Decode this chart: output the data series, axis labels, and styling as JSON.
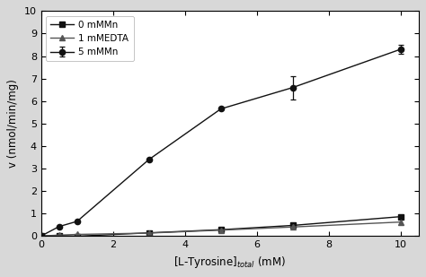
{
  "series": [
    {
      "label": "5 mMMn",
      "marker": "o",
      "color": "#111111",
      "x": [
        0,
        0.5,
        1.0,
        3.0,
        5.0,
        7.0,
        10.0
      ],
      "y": [
        0.0,
        0.42,
        0.65,
        3.4,
        5.65,
        6.6,
        8.3
      ],
      "yerr": [
        0,
        0,
        0,
        0,
        0,
        0.52,
        0.18
      ]
    },
    {
      "label": "0 mMMn",
      "marker": "s",
      "color": "#111111",
      "x": [
        0,
        0.5,
        1.0,
        3.0,
        5.0,
        7.0,
        10.0
      ],
      "y": [
        0.0,
        0.02,
        -0.01,
        0.14,
        0.28,
        0.47,
        0.86
      ],
      "yerr": null
    },
    {
      "label": "1 mMEDTA",
      "marker": "^",
      "color": "#555555",
      "x": [
        0,
        0.5,
        1.0,
        3.0,
        5.0,
        7.0,
        10.0
      ],
      "y": [
        0.0,
        0.04,
        0.07,
        0.13,
        0.26,
        0.4,
        0.62
      ],
      "yerr": null
    }
  ],
  "xlabel": "[L-Tyrosine]$_{total}$ (mM)",
  "ylabel": "v (nmol/min/mg)",
  "xlim": [
    0,
    10.5
  ],
  "ylim": [
    0,
    10
  ],
  "xticks": [
    0,
    2,
    4,
    6,
    8,
    10
  ],
  "yticks": [
    0,
    1,
    2,
    3,
    4,
    5,
    6,
    7,
    8,
    9,
    10
  ],
  "outer_bg": "#d8d8d8",
  "plot_bg_color": "#ffffff",
  "legend_loc": "upper left",
  "markersize": 4.5,
  "linewidth": 1.0,
  "legend_fontsize": 7.5,
  "axis_fontsize": 8.5,
  "tick_fontsize": 8
}
